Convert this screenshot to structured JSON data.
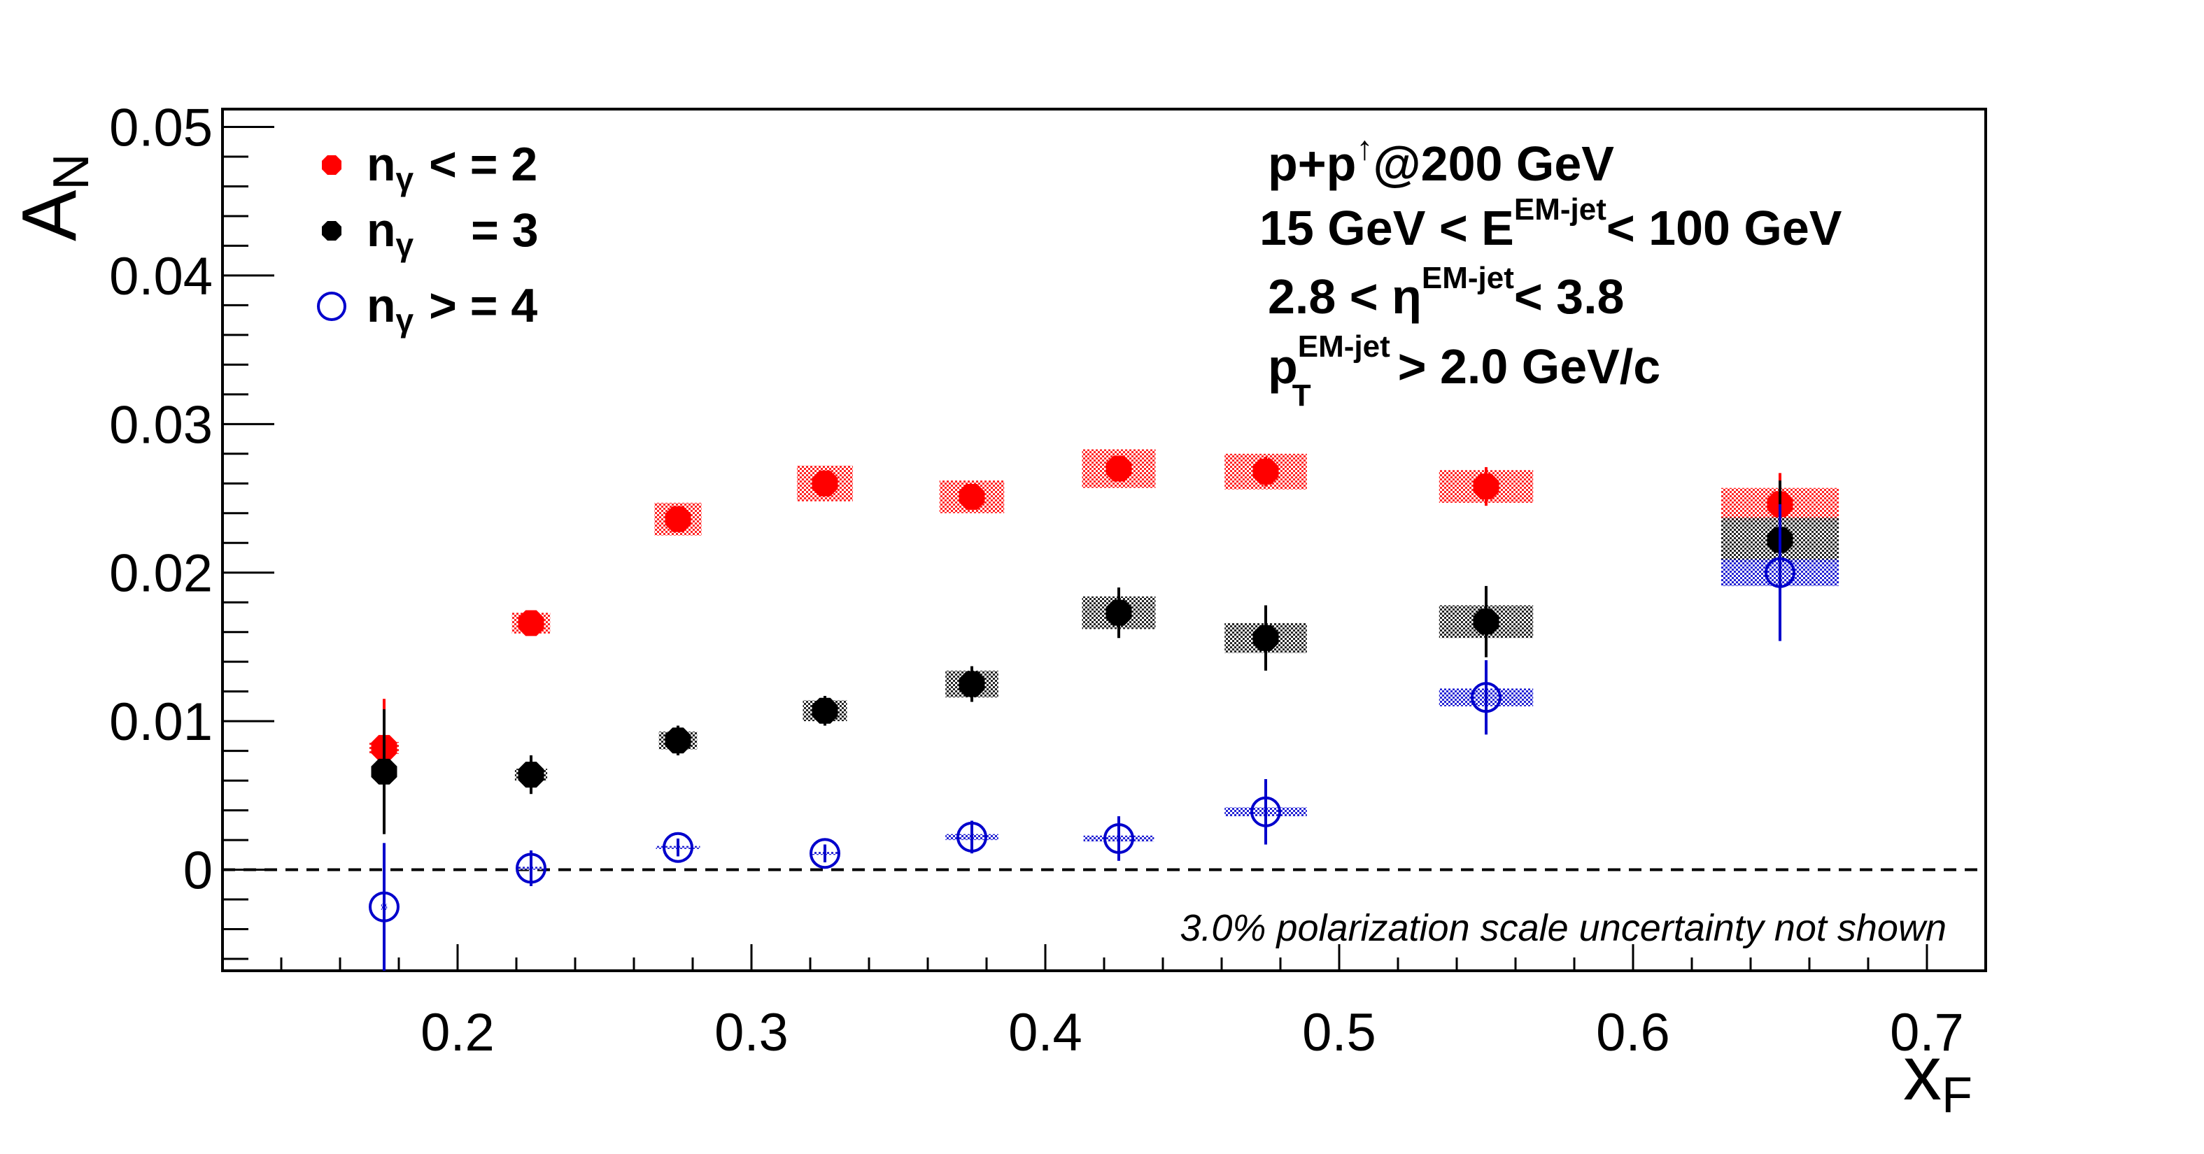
{
  "colors": {
    "red": "#ff0000",
    "black": "#000000",
    "blue": "#0000cc"
  },
  "legend": {
    "entries": [
      {
        "n": "n",
        "sub": "γ",
        "rel": "< = 2",
        "color": "#ff0000",
        "marker": "filled-circle"
      },
      {
        "n": "n",
        "sub": "γ",
        "rel": "= 3",
        "color": "#000000",
        "marker": "filled-circle"
      },
      {
        "n": "n",
        "sub": "γ",
        "rel": "> = 4",
        "color": "#0000cc",
        "marker": "open-circle"
      }
    ]
  },
  "info": {
    "line1": {
      "a": "p+p",
      "sup": "↑",
      "b": "@200 GeV"
    },
    "line2": {
      "a": "15 GeV < E",
      "sup": "EM-jet",
      "b": "< 100 GeV"
    },
    "line3": {
      "a": "2.8 <  η",
      "sup": "EM-jet",
      "b": "< 3.8"
    },
    "line4": {
      "a": "p",
      "sup": "EM-jet",
      "sub": "T",
      "b": "> 2.0 GeV/c"
    }
  },
  "note": "3.0% polarization scale uncertainty not shown",
  "chart_data": {
    "type": "scatter",
    "xlabel": {
      "main": "x",
      "sub": "F"
    },
    "ylabel": {
      "main": "A",
      "sub": "N"
    },
    "xlim": [
      0.12,
      0.72
    ],
    "ylim": [
      -0.0068,
      0.0512
    ],
    "xticks": [
      0.2,
      0.3,
      0.4,
      0.5,
      0.6,
      0.7
    ],
    "xtick_labels": [
      "0.2",
      "0.3",
      "0.4",
      "0.5",
      "0.6",
      "0.7"
    ],
    "yticks": [
      0,
      0.01,
      0.02,
      0.03,
      0.04,
      0.05
    ],
    "ytick_labels": [
      "0",
      "0.01",
      "0.02",
      "0.03",
      "0.04",
      "0.05"
    ],
    "zero_line": true,
    "series": [
      {
        "name": "n_γ < = 2",
        "color": "#ff0000",
        "marker": "filled",
        "x": [
          0.175,
          0.225,
          0.275,
          0.325,
          0.375,
          0.425,
          0.475,
          0.55,
          0.65
        ],
        "y": [
          0.0082,
          0.0166,
          0.0236,
          0.026,
          0.0251,
          0.027,
          0.0268,
          0.0258,
          0.0246
        ],
        "stat": [
          0.0033,
          0.0005,
          0.0006,
          0.0006,
          0.0007,
          0.0008,
          0.001,
          0.0013,
          0.0021
        ],
        "syst_hw": [
          0.005,
          0.0065,
          0.008,
          0.0095,
          0.011,
          0.0125,
          0.014,
          0.016,
          0.02
        ],
        "syst": [
          0.0004,
          0.0007,
          0.0011,
          0.0012,
          0.0011,
          0.0013,
          0.0012,
          0.0011,
          0.0011
        ]
      },
      {
        "name": "n_γ = 3",
        "color": "#000000",
        "marker": "filled",
        "x": [
          0.175,
          0.225,
          0.275,
          0.325,
          0.375,
          0.425,
          0.475,
          0.55,
          0.65
        ],
        "y": [
          0.0066,
          0.0064,
          0.0087,
          0.0107,
          0.0125,
          0.0173,
          0.0156,
          0.0167,
          0.0222
        ],
        "stat": [
          0.0042,
          0.0013,
          0.001,
          0.001,
          0.0012,
          0.0017,
          0.0022,
          0.0024,
          0.004
        ],
        "syst_hw": [
          0.004,
          0.0055,
          0.0065,
          0.0075,
          0.009,
          0.0125,
          0.014,
          0.016,
          0.02
        ],
        "syst": [
          0.0003,
          0.0004,
          0.0006,
          0.0007,
          0.0009,
          0.0011,
          0.001,
          0.0011,
          0.0015
        ]
      },
      {
        "name": "n_γ > = 4",
        "color": "#0000cc",
        "marker": "open",
        "x": [
          0.175,
          0.225,
          0.275,
          0.325,
          0.375,
          0.425,
          0.475,
          0.55,
          0.65
        ],
        "y": [
          -0.0025,
          0.0001,
          0.0015,
          0.0011,
          0.0022,
          0.0021,
          0.0039,
          0.0116,
          0.02
        ],
        "stat": [
          0.0043,
          0.0012,
          0.0006,
          0.0006,
          0.0011,
          0.0015,
          0.0022,
          0.0025,
          0.0046
        ],
        "syst_hw": [
          0.001,
          0.0045,
          0.0075,
          0.0045,
          0.009,
          0.012,
          0.014,
          0.016,
          0.02
        ],
        "syst": [
          0.0002,
          0.0001,
          0.0001,
          0.0001,
          0.0002,
          0.0002,
          0.0003,
          0.0006,
          0.0009
        ]
      }
    ]
  }
}
